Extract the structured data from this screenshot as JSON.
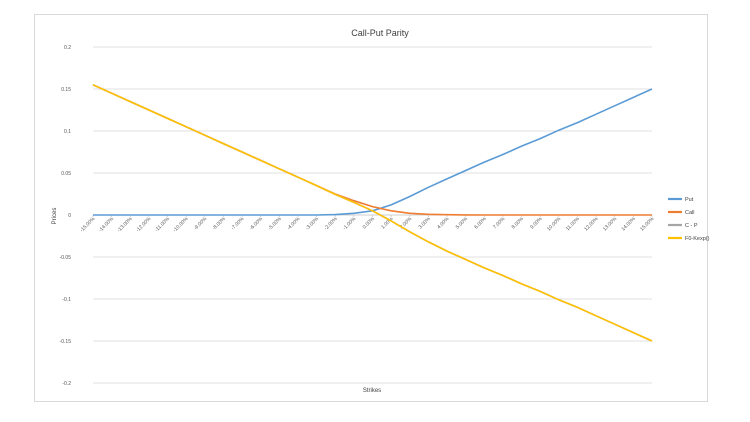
{
  "chart_data": {
    "type": "line",
    "title": "Call-Put Parity",
    "xlabel": "Strikes",
    "ylabel": "Prices",
    "ylim": [
      -0.2,
      0.2
    ],
    "yticks": [
      0.2,
      0.15,
      0.1,
      0.05,
      0,
      -0.05,
      -0.1,
      -0.15,
      -0.2
    ],
    "ytick_labels": [
      "0.2",
      "0.15",
      "0.1",
      "0.05",
      "0",
      "-0.05",
      "-0.1",
      "-0.15",
      "-0.2"
    ],
    "categories": [
      "-15.00%",
      "-14.00%",
      "-13.00%",
      "-12.00%",
      "-11.00%",
      "-10.00%",
      "-9.00%",
      "-8.00%",
      "-7.00%",
      "-6.00%",
      "-5.00%",
      "-4.00%",
      "-3.00%",
      "-2.00%",
      "-1.00%",
      "0.00%",
      "1.00%",
      "2.00%",
      "3.00%",
      "4.00%",
      "5.00%",
      "6.00%",
      "7.00%",
      "8.00%",
      "9.00%",
      "10.00%",
      "11.00%",
      "12.00%",
      "13.00%",
      "14.00%",
      "15.00%"
    ],
    "grid": true,
    "legend_position": "right",
    "series": [
      {
        "name": "Put",
        "color": "#5B9BD5",
        "values": [
          0,
          0,
          0,
          0,
          0,
          0,
          0,
          0,
          0,
          0,
          0,
          0,
          0,
          0.0005,
          0.002,
          0.005,
          0.012,
          0.022,
          0.033,
          0.043,
          0.053,
          0.063,
          0.072,
          0.082,
          0.091,
          0.101,
          0.11,
          0.12,
          0.13,
          0.14,
          0.15
        ]
      },
      {
        "name": "Call",
        "color": "#ED7D31",
        "values": [
          0.155,
          0.145,
          0.135,
          0.125,
          0.115,
          0.105,
          0.095,
          0.085,
          0.075,
          0.065,
          0.055,
          0.045,
          0.035,
          0.025,
          0.017,
          0.01,
          0.005,
          0.002,
          0.0008,
          0.0003,
          0.0001,
          0,
          0,
          0,
          0,
          0,
          0,
          0,
          0,
          0,
          0
        ]
      },
      {
        "name": "C - P",
        "color": "#A5A5A5",
        "values": [
          0.155,
          0.145,
          0.135,
          0.125,
          0.115,
          0.105,
          0.095,
          0.085,
          0.075,
          0.065,
          0.055,
          0.045,
          0.035,
          0.0245,
          0.015,
          0.005,
          -0.007,
          -0.02,
          -0.032,
          -0.043,
          -0.053,
          -0.063,
          -0.072,
          -0.082,
          -0.091,
          -0.101,
          -0.11,
          -0.12,
          -0.13,
          -0.14,
          -0.15
        ]
      },
      {
        "name": "F0-Kexp()",
        "color": "#FFC000",
        "values": [
          0.155,
          0.145,
          0.135,
          0.125,
          0.115,
          0.105,
          0.095,
          0.085,
          0.075,
          0.065,
          0.055,
          0.045,
          0.035,
          0.0245,
          0.015,
          0.005,
          -0.007,
          -0.02,
          -0.032,
          -0.043,
          -0.053,
          -0.063,
          -0.072,
          -0.082,
          -0.091,
          -0.101,
          -0.11,
          -0.12,
          -0.13,
          -0.14,
          -0.15
        ]
      }
    ]
  }
}
